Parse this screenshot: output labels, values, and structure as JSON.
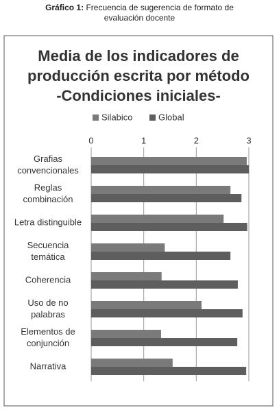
{
  "chart_data": {
    "type": "hbar",
    "caption_label": "Gráfico 1:",
    "caption": "Frecuencia de sugerencia de formato de evaluación docente",
    "title": [
      "Media de los indicadores de",
      "producción escrita por método",
      "-Condiciones iniciales-"
    ],
    "categories": [
      [
        "Grafias",
        "convencionales"
      ],
      [
        "Reglas",
        "combinación"
      ],
      [
        "Letra distinguible"
      ],
      [
        "Secuencia",
        "temática"
      ],
      [
        "Coherencia"
      ],
      [
        "Uso de no",
        "palabras"
      ],
      [
        "Elementos de",
        "conjunción"
      ],
      [
        "Narrativa"
      ]
    ],
    "series": [
      {
        "name": "Silabico",
        "color": "#7a7a7a",
        "values": [
          2.96,
          2.65,
          2.52,
          1.4,
          1.34,
          2.1,
          1.33,
          1.55
        ]
      },
      {
        "name": "Global",
        "color": "#5e5e5e",
        "values": [
          3.0,
          2.86,
          2.97,
          2.65,
          2.79,
          2.88,
          2.78,
          2.95
        ]
      }
    ],
    "xlim": [
      0,
      3
    ],
    "xticks": [
      0,
      1,
      2,
      3
    ],
    "grid": true,
    "legend": "top"
  }
}
